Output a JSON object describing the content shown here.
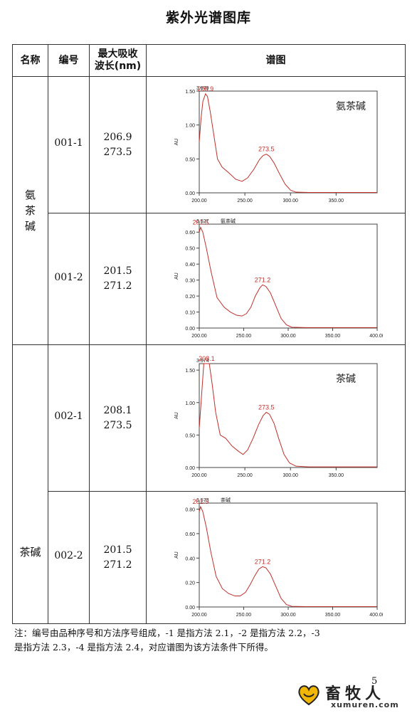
{
  "page_title": "紫外光谱图库",
  "table": {
    "headers": {
      "name": "名称",
      "number": "编号",
      "wavelength_line1": "最大吸收",
      "wavelength_line2": "波长(nm)",
      "spectrum": "谱图"
    },
    "groups": [
      {
        "name": "氨茶碱",
        "rows": [
          {
            "number": "001-1",
            "wl1": "206.9",
            "wl2": "273.5"
          },
          {
            "number": "001-2",
            "wl1": "201.5",
            "wl2": "271.2"
          }
        ]
      },
      {
        "name": "茶碱",
        "rows": [
          {
            "number": "002-1",
            "wl1": "208.1",
            "wl2": "273.5"
          },
          {
            "number": "002-2",
            "wl1": "201.5",
            "wl2": "271.2"
          }
        ]
      }
    ]
  },
  "chart_data": [
    {
      "type": "line",
      "ylabel": "AU",
      "xlim": [
        200,
        395
      ],
      "ylim": [
        0,
        1.5
      ],
      "xticks": [
        "200.00",
        "250.00",
        "300.00",
        "350.00"
      ],
      "yticks": [
        "0.00",
        "0.50",
        "1.00",
        "1.50"
      ],
      "top_value": "3.979",
      "inset_label": "氨茶碱",
      "inset_style": "large",
      "peaks": [
        {
          "x": 206.9,
          "y": 1.46,
          "label": "206.9"
        },
        {
          "x": 273.5,
          "y": 0.57,
          "label": "273.5"
        }
      ],
      "x": [
        200,
        202,
        204,
        206.9,
        209,
        212,
        216,
        220,
        225,
        232,
        240,
        247,
        253,
        260,
        266,
        270,
        273.5,
        277,
        282,
        288,
        294,
        300,
        306,
        320,
        350,
        395
      ],
      "y": [
        0.75,
        1.1,
        1.35,
        1.46,
        1.42,
        1.2,
        0.85,
        0.5,
        0.38,
        0.3,
        0.2,
        0.17,
        0.22,
        0.35,
        0.49,
        0.55,
        0.57,
        0.54,
        0.44,
        0.28,
        0.13,
        0.04,
        0.01,
        0.005,
        0.005,
        0.005
      ],
      "color": "#c0302a"
    },
    {
      "type": "line",
      "ylabel": "AU",
      "xlim": [
        200,
        400
      ],
      "ylim": [
        0,
        0.65
      ],
      "xticks": [
        "200.00",
        "250.00",
        "300.00",
        "350.00",
        "400.00"
      ],
      "yticks": [
        "0.00",
        "0.10",
        "0.20",
        "0.30",
        "0.40",
        "0.50",
        "0.60"
      ],
      "top_value": "6.527",
      "inset_label": "氨茶碱",
      "inset_style": "small",
      "peaks": [
        {
          "x": 201.5,
          "y": 0.63,
          "label": "201.5"
        },
        {
          "x": 271.2,
          "y": 0.27,
          "label": "271.2"
        }
      ],
      "x": [
        200,
        201.5,
        204,
        208,
        213,
        220,
        228,
        235,
        242,
        248,
        253,
        258,
        263,
        268,
        271.2,
        275,
        280,
        286,
        292,
        298,
        304,
        320,
        360,
        400
      ],
      "y": [
        0.6,
        0.63,
        0.6,
        0.5,
        0.36,
        0.19,
        0.13,
        0.1,
        0.08,
        0.075,
        0.09,
        0.13,
        0.2,
        0.25,
        0.27,
        0.26,
        0.22,
        0.14,
        0.06,
        0.02,
        0.005,
        0.003,
        0.003,
        0.003
      ],
      "color": "#c0302a"
    },
    {
      "type": "line",
      "ylabel": "AU",
      "xlim": [
        200,
        395
      ],
      "ylim": [
        0,
        1.6
      ],
      "xticks": [
        "200.00",
        "250.00",
        "300.00",
        "350.00"
      ],
      "yticks": [
        "0.00",
        "0.50",
        "1.00",
        "1.50"
      ],
      "top_value": "3.574",
      "inset_label": "茶碱",
      "inset_style": "large",
      "peaks": [
        {
          "x": 208.1,
          "y": 1.73,
          "label": "208.1"
        },
        {
          "x": 273.5,
          "y": 0.85,
          "label": "273.5"
        }
      ],
      "x": [
        200,
        203,
        205,
        208.1,
        211,
        214,
        218,
        223,
        229,
        236,
        243,
        248,
        253,
        259,
        265,
        270,
        273.5,
        277,
        282,
        287,
        293,
        299,
        306,
        320,
        360,
        395
      ],
      "y": [
        0.6,
        1.2,
        1.6,
        1.73,
        1.62,
        1.3,
        0.85,
        0.5,
        0.45,
        0.33,
        0.25,
        0.2,
        0.27,
        0.45,
        0.66,
        0.8,
        0.85,
        0.82,
        0.68,
        0.45,
        0.2,
        0.07,
        0.02,
        0.01,
        0.01,
        0.01
      ],
      "color": "#c0302a"
    },
    {
      "type": "line",
      "ylabel": "AU",
      "xlim": [
        200,
        400
      ],
      "ylim": [
        0,
        0.85
      ],
      "xticks": [
        "200.00",
        "250.00",
        "300.00",
        "350.00",
        "400.00"
      ],
      "yticks": [
        "0.00",
        "0.20",
        "0.40",
        "0.60",
        "0.80"
      ],
      "top_value": "6.573",
      "inset_label": "茶碱",
      "inset_style": "small",
      "peaks": [
        {
          "x": 201.5,
          "y": 0.82,
          "label": "201.5"
        },
        {
          "x": 271.2,
          "y": 0.33,
          "label": "271.2"
        }
      ],
      "x": [
        200,
        201.5,
        204,
        208,
        213,
        219,
        226,
        233,
        240,
        246,
        252,
        257,
        262,
        267,
        271.2,
        275,
        280,
        286,
        292,
        298,
        304,
        320,
        360,
        400
      ],
      "y": [
        0.78,
        0.82,
        0.78,
        0.65,
        0.45,
        0.25,
        0.15,
        0.11,
        0.09,
        0.09,
        0.12,
        0.18,
        0.25,
        0.31,
        0.33,
        0.32,
        0.27,
        0.17,
        0.07,
        0.02,
        0.005,
        0.003,
        0.003,
        0.003
      ],
      "color": "#c0302a"
    }
  ],
  "footnote": {
    "line1": "注：编号由品种序号和方法序号组成，-1 是指方法 2.1，-2 是指方法 2.2，-3",
    "line2": "是指方法 2.3，-4 是指方法 2.4，对应谱图为该方法条件下所得。"
  },
  "page_number": "5",
  "logo": {
    "cn": "畜牧人",
    "en": "xumuren.com"
  }
}
